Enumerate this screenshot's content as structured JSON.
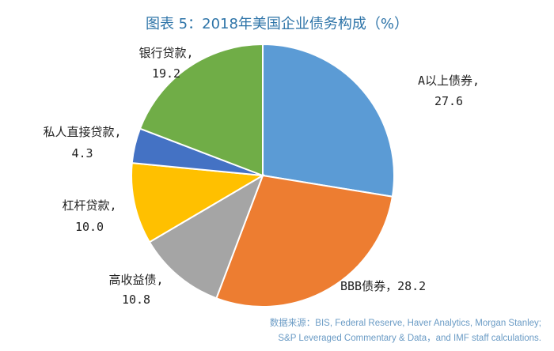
{
  "chart_data": {
    "type": "pie",
    "title": "图表 5：2018年美国企业债务构成（%）",
    "start": "12 o'clock, clockwise",
    "slices": [
      {
        "name": "A以上债券",
        "value": 27.6,
        "label_line1": "A以上债券,",
        "label_line2": "27.6",
        "color": "#5b9bd5"
      },
      {
        "name": "BBB债券",
        "value": 28.2,
        "label_line1": "BBB债券，28.2",
        "label_line2": "",
        "color": "#ed7d31"
      },
      {
        "name": "高收益债",
        "value": 10.8,
        "label_line1": "高收益债,",
        "label_line2": "10.8",
        "color": "#a5a5a5"
      },
      {
        "name": "杠杆贷款",
        "value": 10.0,
        "label_line1": "杠杆贷款,",
        "label_line2": "10.0",
        "color": "#ffc000"
      },
      {
        "name": "私人直接贷款",
        "value": 4.3,
        "label_line1": "私人直接贷款,",
        "label_line2": "4.3",
        "color": "#4472c4"
      },
      {
        "name": "银行贷款",
        "value": 19.2,
        "label_line1": "银行贷款,",
        "label_line2": "19.2",
        "color": "#70ad47"
      }
    ]
  },
  "source": {
    "line1": "数据来源：BIS, Federal Reserve, Haver Analytics, Morgan Stanley;",
    "line2": "S&P Leveraged Commentary & Data，and IMF staff calculations."
  }
}
